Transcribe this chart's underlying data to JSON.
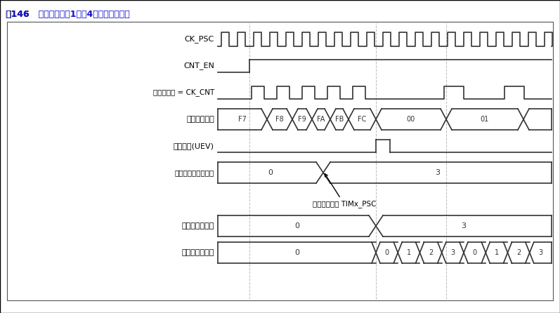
{
  "title_prefix": "图146",
  "title_main": "   预分频系数从1变到4的计数器时序图",
  "bg_color": "#ffffff",
  "border_color": "#000000",
  "signal_color": "#333333",
  "grid_color": "#bbbbbb",
  "text_color": "#000000",
  "blue_color": "#0000cc",
  "fig_width": 7.97,
  "fig_height": 4.46,
  "annotation_text": "写新的数值至 TIMx_PSC",
  "row_labels": [
    "CK_PSC",
    "CNT_EN",
    "定时器时钟 = CK_CNT",
    "计数器寄存器",
    "更新事件(UEV)",
    "预分频器控制寄存器",
    "",
    "预分频器缓冲器",
    "预分频器计数器"
  ]
}
